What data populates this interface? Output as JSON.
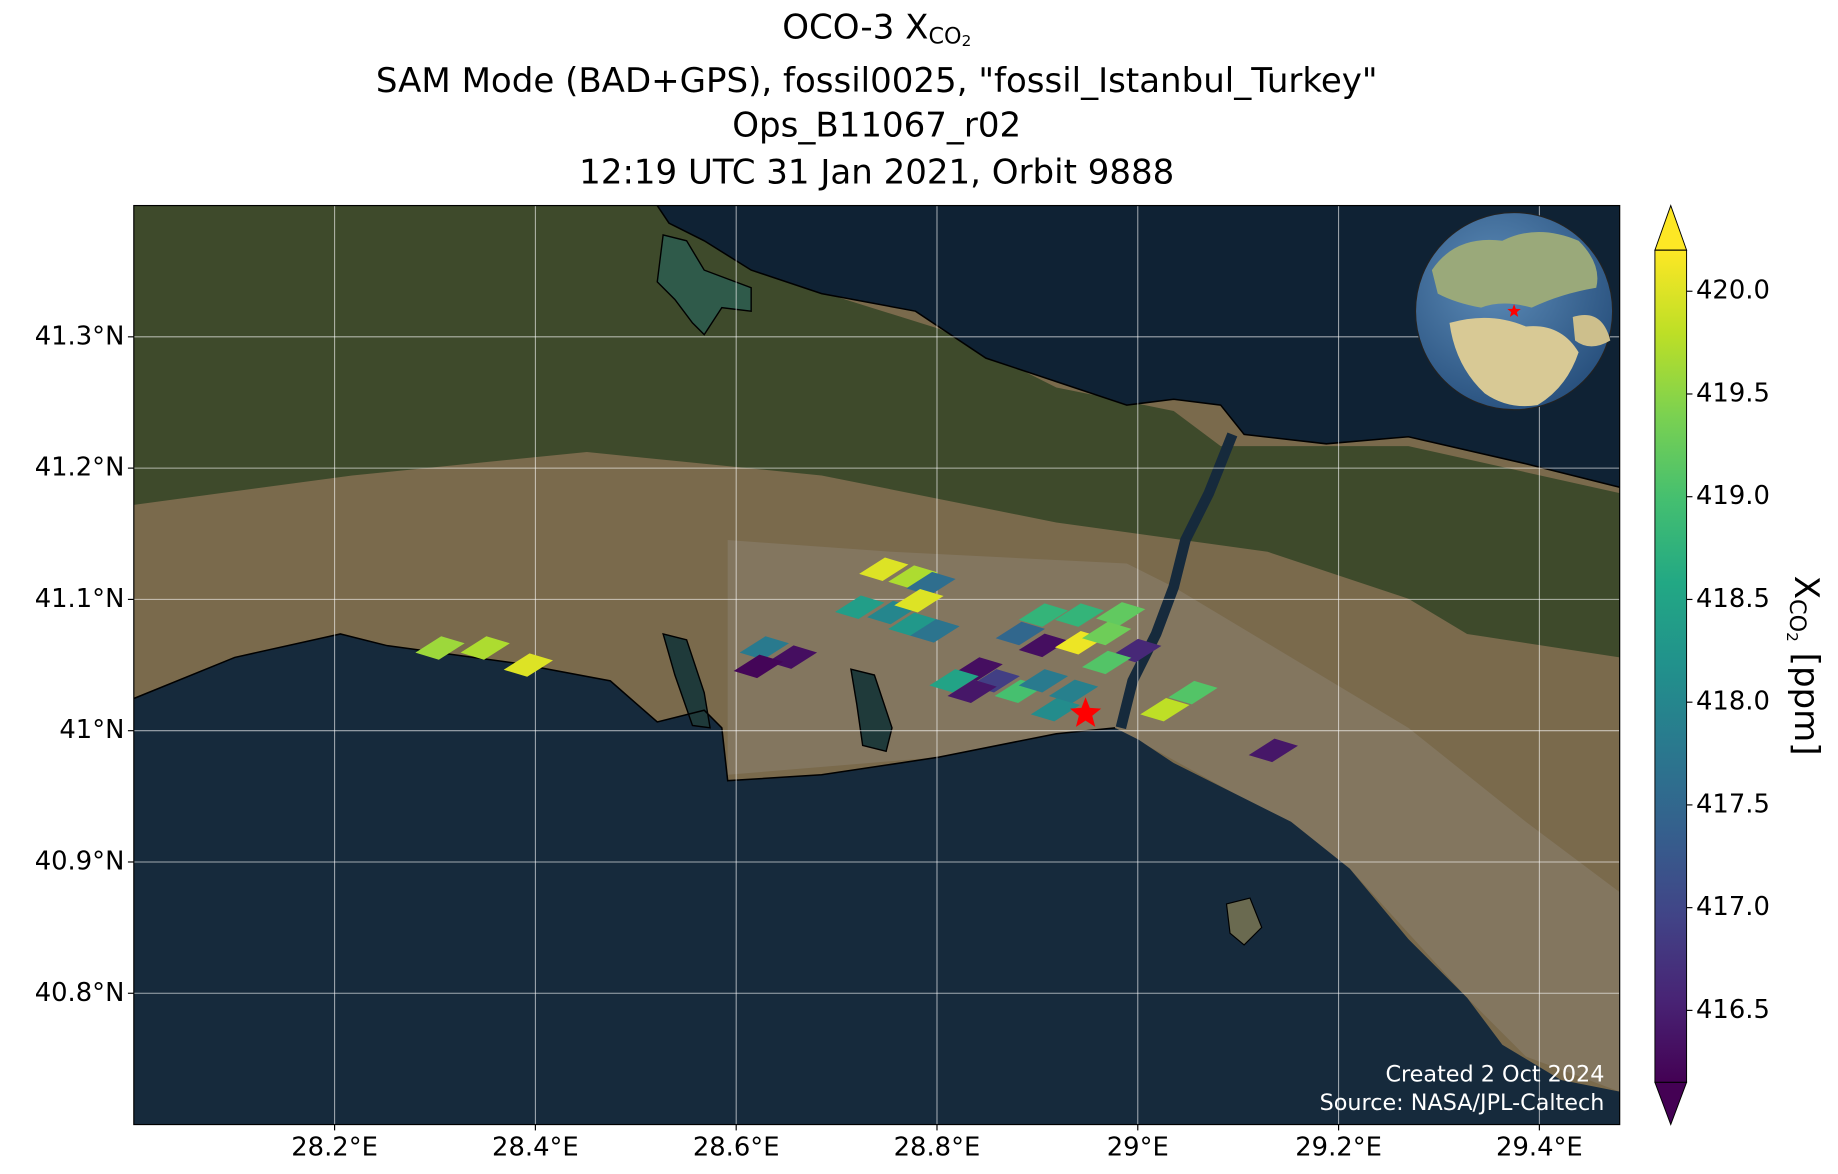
{
  "chart_data": {
    "type": "map",
    "title": {
      "line1": {
        "main": "OCO-3 X",
        "sub": "CO",
        "subsub": "2"
      },
      "line2": "SAM Mode (BAD+GPS), fossil0025, \"fossil_Istanbul_Turkey\"",
      "line3": "Ops_B11067_r02",
      "line4": "12:19 UTC 31 Jan 2021, Orbit 9888"
    },
    "xlim": [
      28.0,
      29.48
    ],
    "ylim": [
      40.7,
      41.4
    ],
    "xticks": [
      {
        "value": 28.2,
        "label": "28.2°E"
      },
      {
        "value": 28.4,
        "label": "28.4°E"
      },
      {
        "value": 28.6,
        "label": "28.6°E"
      },
      {
        "value": 28.8,
        "label": "28.8°E"
      },
      {
        "value": 29.0,
        "label": "29°E"
      },
      {
        "value": 29.2,
        "label": "29.2°E"
      },
      {
        "value": 29.4,
        "label": "29.4°E"
      }
    ],
    "yticks": [
      {
        "value": 40.8,
        "label": "40.8°N"
      },
      {
        "value": 40.9,
        "label": "40.9°N"
      },
      {
        "value": 41.0,
        "label": "41°N"
      },
      {
        "value": 41.1,
        "label": "41.1°N"
      },
      {
        "value": 41.2,
        "label": "41.2°N"
      },
      {
        "value": 41.3,
        "label": "41.3°N"
      }
    ],
    "grid": true,
    "footprints": {
      "x": [
        28.305,
        28.35,
        28.393,
        28.628,
        28.656,
        28.622,
        28.747,
        28.776,
        28.794,
        28.723,
        28.755,
        28.782,
        28.776,
        28.798,
        28.906,
        28.942,
        28.983,
        28.883,
        28.906,
        28.942,
        28.969,
        28.999,
        28.969,
        28.841,
        28.817,
        28.858,
        28.882,
        28.906,
        28.835,
        28.918,
        28.936,
        29.027,
        29.055,
        29.135
      ],
      "y": [
        41.063,
        41.063,
        41.05,
        41.063,
        41.056,
        41.049,
        41.123,
        41.117,
        41.112,
        41.094,
        41.09,
        41.099,
        41.081,
        41.076,
        41.088,
        41.088,
        41.089,
        41.074,
        41.065,
        41.067,
        41.074,
        41.061,
        41.052,
        41.047,
        41.038,
        41.038,
        41.03,
        41.038,
        41.03,
        41.016,
        41.03,
        41.016,
        41.029,
        40.985
      ],
      "values": [
        419.6,
        419.7,
        420.0,
        417.8,
        416.3,
        416.2,
        420.0,
        419.7,
        417.6,
        418.4,
        418.0,
        420.0,
        418.3,
        417.7,
        418.8,
        418.8,
        419.2,
        417.5,
        416.3,
        420.1,
        419.3,
        416.6,
        419.1,
        416.3,
        418.5,
        416.9,
        419.0,
        417.8,
        416.4,
        418.1,
        417.9,
        419.8,
        419.1,
        416.4
      ]
    },
    "target": {
      "x": 28.948,
      "y": 41.013,
      "color": "#ff0000"
    },
    "colorbar": {
      "colormap": "viridis",
      "clim": [
        416.15,
        420.2
      ],
      "ticks": [
        416.5,
        {
          "value": 417,
          "label": "417.0"
        },
        417.5,
        {
          "value": 418,
          "label": "418.0"
        },
        418.5,
        {
          "value": 419,
          "label": "419.0"
        },
        419.5,
        {
          "value": 420,
          "label": "420.0"
        }
      ],
      "label": {
        "main": "X",
        "sub": "CO",
        "subsub": "2",
        "unit": " [ppm]"
      }
    },
    "credits": [
      "Created 2 Oct 2024",
      "Source: NASA/JPL-Caltech"
    ]
  }
}
